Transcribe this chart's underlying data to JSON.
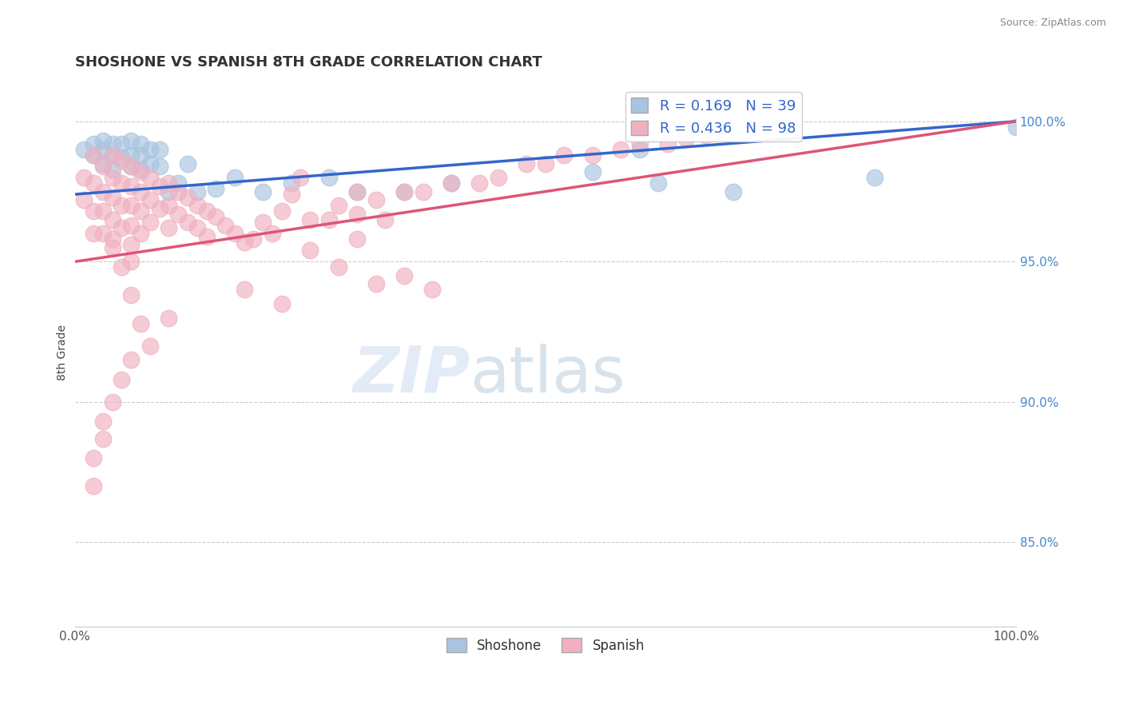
{
  "title": "SHOSHONE VS SPANISH 8TH GRADE CORRELATION CHART",
  "source": "Source: ZipAtlas.com",
  "ylabel": "8th Grade",
  "ylabel_right": [
    "100.0%",
    "95.0%",
    "90.0%",
    "85.0%"
  ],
  "ylabel_right_vals": [
    1.0,
    0.95,
    0.9,
    0.85
  ],
  "xlim": [
    0.0,
    1.0
  ],
  "ylim": [
    0.82,
    1.015
  ],
  "shoshone_color": "#a8c4e0",
  "spanish_color": "#f0b0c0",
  "shoshone_line_color": "#3366cc",
  "spanish_line_color": "#dd5577",
  "legend_label_shoshone": "R = 0.169   N = 39",
  "legend_label_spanish": "R = 0.436   N = 98",
  "bottom_legend_shoshone": "Shoshone",
  "bottom_legend_spanish": "Spanish",
  "shoshone_x": [
    0.01,
    0.02,
    0.02,
    0.03,
    0.03,
    0.03,
    0.04,
    0.04,
    0.04,
    0.05,
    0.05,
    0.06,
    0.06,
    0.06,
    0.07,
    0.07,
    0.07,
    0.08,
    0.08,
    0.09,
    0.09,
    0.1,
    0.11,
    0.12,
    0.13,
    0.15,
    0.17,
    0.2,
    0.23,
    0.27,
    0.3,
    0.35,
    0.4,
    0.55,
    0.6,
    0.62,
    0.7,
    0.85,
    1.0
  ],
  "shoshone_y": [
    0.99,
    0.992,
    0.988,
    0.993,
    0.99,
    0.985,
    0.992,
    0.988,
    0.983,
    0.992,
    0.987,
    0.993,
    0.988,
    0.984,
    0.992,
    0.988,
    0.983,
    0.99,
    0.985,
    0.99,
    0.984,
    0.975,
    0.978,
    0.985,
    0.975,
    0.976,
    0.98,
    0.975,
    0.978,
    0.98,
    0.975,
    0.975,
    0.978,
    0.982,
    0.99,
    0.978,
    0.975,
    0.98,
    0.998
  ],
  "spanish_x": [
    0.01,
    0.01,
    0.02,
    0.02,
    0.02,
    0.02,
    0.03,
    0.03,
    0.03,
    0.03,
    0.04,
    0.04,
    0.04,
    0.04,
    0.04,
    0.05,
    0.05,
    0.05,
    0.05,
    0.06,
    0.06,
    0.06,
    0.06,
    0.06,
    0.06,
    0.07,
    0.07,
    0.07,
    0.07,
    0.08,
    0.08,
    0.08,
    0.09,
    0.09,
    0.1,
    0.1,
    0.1,
    0.11,
    0.11,
    0.12,
    0.12,
    0.13,
    0.13,
    0.14,
    0.14,
    0.15,
    0.16,
    0.17,
    0.18,
    0.19,
    0.2,
    0.21,
    0.22,
    0.23,
    0.24,
    0.25,
    0.27,
    0.28,
    0.3,
    0.3,
    0.32,
    0.33,
    0.35,
    0.37,
    0.4,
    0.43,
    0.45,
    0.48,
    0.5,
    0.52,
    0.55,
    0.58,
    0.6,
    0.63,
    0.65,
    0.67,
    0.68,
    0.3,
    0.25,
    0.28,
    0.32,
    0.35,
    0.38,
    0.18,
    0.22,
    0.1,
    0.08,
    0.06,
    0.05,
    0.04,
    0.03,
    0.03,
    0.02,
    0.02,
    0.04,
    0.05,
    0.06,
    0.07
  ],
  "spanish_y": [
    0.98,
    0.972,
    0.988,
    0.978,
    0.968,
    0.96,
    0.984,
    0.975,
    0.968,
    0.96,
    0.988,
    0.98,
    0.973,
    0.965,
    0.958,
    0.986,
    0.978,
    0.97,
    0.962,
    0.984,
    0.977,
    0.97,
    0.963,
    0.956,
    0.95,
    0.982,
    0.975,
    0.968,
    0.96,
    0.98,
    0.972,
    0.964,
    0.977,
    0.969,
    0.978,
    0.97,
    0.962,
    0.975,
    0.967,
    0.973,
    0.964,
    0.97,
    0.962,
    0.968,
    0.959,
    0.966,
    0.963,
    0.96,
    0.957,
    0.958,
    0.964,
    0.96,
    0.968,
    0.974,
    0.98,
    0.965,
    0.965,
    0.97,
    0.975,
    0.967,
    0.972,
    0.965,
    0.975,
    0.975,
    0.978,
    0.978,
    0.98,
    0.985,
    0.985,
    0.988,
    0.988,
    0.99,
    0.992,
    0.992,
    0.994,
    0.995,
    0.996,
    0.958,
    0.954,
    0.948,
    0.942,
    0.945,
    0.94,
    0.94,
    0.935,
    0.93,
    0.92,
    0.915,
    0.908,
    0.9,
    0.893,
    0.887,
    0.88,
    0.87,
    0.955,
    0.948,
    0.938,
    0.928
  ]
}
